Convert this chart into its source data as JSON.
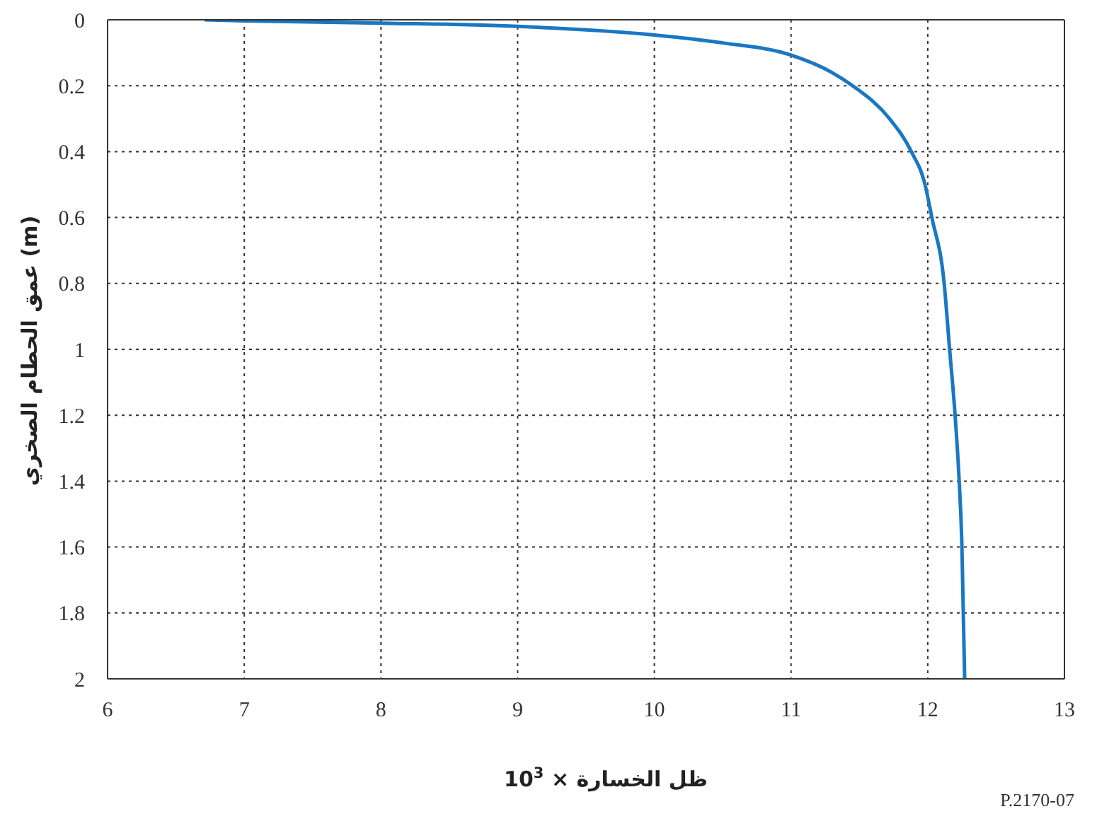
{
  "chart_data": {
    "type": "line",
    "xlabel": "ظل الخسارة × 10$^{3}$",
    "ylabel": "عمق الحطام الصخري (m)",
    "annotations": [
      "P.2170-07"
    ],
    "x": [
      6.71,
      7,
      8,
      9,
      10,
      10.5,
      11,
      11.3,
      11.45,
      11.72,
      11.88,
      11.98,
      12.03,
      12.12,
      12.16,
      12.2,
      12.23,
      12.25,
      12.26,
      12.27
    ],
    "series": [
      {
        "color": "#1a78c2",
        "values": [
          0,
          0.003,
          0.01,
          0.02,
          0.046,
          0.07,
          0.107,
          0.16,
          0.2,
          0.3,
          0.4,
          0.5,
          0.6,
          0.8,
          1.0,
          1.2,
          1.4,
          1.6,
          1.8,
          2.0
        ]
      }
    ],
    "xlim": [
      6,
      13
    ],
    "xticks": [
      6,
      7,
      8,
      9,
      10,
      11,
      12,
      13
    ],
    "ylim": [
      2,
      0
    ],
    "yticks": [
      0,
      0.2,
      0.4,
      0.6,
      0.8,
      1,
      1.2,
      1.4,
      1.6,
      1.8,
      2
    ],
    "grid": true,
    "line_style": "solid",
    "marker": "none"
  }
}
